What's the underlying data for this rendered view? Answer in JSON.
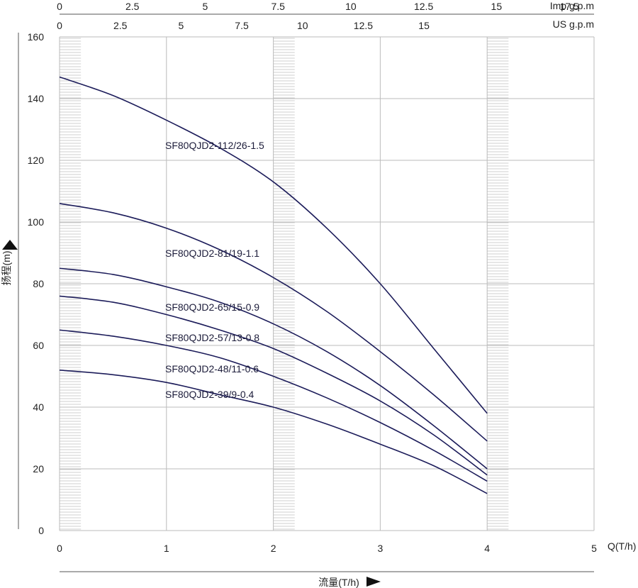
{
  "chart_data": {
    "type": "line",
    "xlabel": "Q(T/h)",
    "ylabel": "扬程(m)",
    "footer_label": "流量(T/h)",
    "xlim": [
      0,
      5
    ],
    "ylim": [
      0,
      160
    ],
    "x_ticks": [
      "0",
      "1",
      "2",
      "3",
      "4",
      "5"
    ],
    "y_ticks": [
      "0",
      "20",
      "40",
      "60",
      "80",
      "100",
      "120",
      "140",
      "160"
    ],
    "top_axes": [
      {
        "label": "Imp g.p.m",
        "ticks": [
          "0",
          "2.5",
          "5",
          "7.5",
          "10",
          "12.5",
          "15",
          "17.5"
        ],
        "values": [
          0,
          2.5,
          5,
          7.5,
          10,
          12.5,
          15,
          17.5
        ],
        "max": 18.35
      },
      {
        "label": "US g.p.m",
        "ticks": [
          "0",
          "2.5",
          "5",
          "7.5",
          "10",
          "12.5",
          "15"
        ],
        "values": [
          0,
          2.5,
          5,
          7.5,
          10,
          12.5,
          15
        ],
        "max": 22.0
      }
    ],
    "grid": true,
    "series": [
      {
        "name": "SF80QJD2-112/26-1.5",
        "x": [
          0,
          0.5,
          1,
          1.5,
          2,
          2.5,
          3,
          3.5,
          4
        ],
        "y": [
          147,
          141,
          133,
          124,
          113,
          98,
          80,
          59,
          38
        ]
      },
      {
        "name": "SF80QJD2-81/19-1.1",
        "x": [
          0,
          0.5,
          1,
          1.5,
          2,
          2.5,
          3,
          3.5,
          4
        ],
        "y": [
          106,
          103,
          98,
          91,
          82,
          71,
          58,
          44,
          29
        ]
      },
      {
        "name": "SF80QJD2-65/15-0.9",
        "x": [
          0,
          0.5,
          1,
          1.5,
          2,
          2.5,
          3,
          3.5,
          4
        ],
        "y": [
          85,
          83,
          79,
          74,
          67,
          58,
          47,
          34,
          20
        ]
      },
      {
        "name": "SF80QJD2-57/13-0.8",
        "x": [
          0,
          0.5,
          1,
          1.5,
          2,
          2.5,
          3,
          3.5,
          4
        ],
        "y": [
          76,
          74,
          70,
          65,
          59,
          51,
          42,
          31,
          18
        ]
      },
      {
        "name": "SF80QJD2-48/11-0.6",
        "x": [
          0,
          0.5,
          1,
          1.5,
          2,
          2.5,
          3,
          3.5,
          4
        ],
        "y": [
          65,
          63,
          60,
          56,
          50,
          43,
          35,
          26,
          16
        ]
      },
      {
        "name": "SF80QJD2-39/9-0.4",
        "x": [
          0,
          0.5,
          1,
          1.5,
          2,
          2.5,
          3,
          3.5,
          4
        ],
        "y": [
          52,
          50.5,
          48,
          44,
          40,
          34.5,
          28,
          21,
          12
        ]
      }
    ],
    "hatched_bands": [
      [
        0,
        0.2
      ],
      [
        2,
        2.2
      ],
      [
        4,
        4.2
      ]
    ],
    "colors": {
      "curve": "#1c1c5a",
      "grid": "#bbbbbb",
      "hatch": "#cfcfcf",
      "axis": "#555555"
    }
  }
}
